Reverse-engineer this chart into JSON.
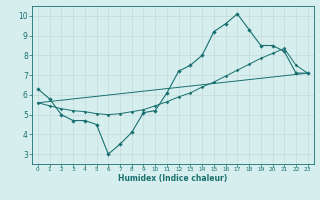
{
  "xlabel": "Humidex (Indice chaleur)",
  "bg_color": "#d6eeee",
  "grid_color": "#c8dede",
  "line_color": "#1a7070",
  "xlim": [
    -0.5,
    23.5
  ],
  "ylim": [
    2.5,
    10.5
  ],
  "xticks": [
    0,
    1,
    2,
    3,
    4,
    5,
    6,
    7,
    8,
    9,
    10,
    11,
    12,
    13,
    14,
    15,
    16,
    17,
    18,
    19,
    20,
    21,
    22,
    23
  ],
  "yticks": [
    3,
    4,
    5,
    6,
    7,
    8,
    9,
    10
  ],
  "series1_x": [
    0,
    1,
    2,
    3,
    4,
    5,
    6,
    7,
    8,
    9,
    10,
    11,
    12,
    13,
    14,
    15,
    16,
    17,
    18,
    19,
    20,
    21,
    22,
    23
  ],
  "series1_y": [
    6.3,
    5.8,
    5.0,
    4.7,
    4.7,
    4.5,
    3.0,
    3.5,
    4.1,
    5.1,
    5.2,
    6.1,
    7.2,
    7.5,
    8.0,
    9.2,
    9.6,
    10.1,
    9.3,
    8.5,
    8.5,
    8.2,
    7.1,
    7.1
  ],
  "series2_x": [
    0,
    1,
    2,
    3,
    4,
    5,
    6,
    7,
    8,
    9,
    10,
    11,
    12,
    13,
    14,
    15,
    16,
    17,
    18,
    19,
    20,
    21,
    22,
    23
  ],
  "series2_y": [
    5.6,
    5.45,
    5.3,
    5.2,
    5.15,
    5.05,
    5.0,
    5.05,
    5.15,
    5.25,
    5.45,
    5.65,
    5.9,
    6.1,
    6.4,
    6.65,
    6.95,
    7.25,
    7.55,
    7.85,
    8.1,
    8.35,
    7.5,
    7.1
  ],
  "series3_x": [
    0,
    23
  ],
  "series3_y": [
    5.6,
    7.1
  ]
}
